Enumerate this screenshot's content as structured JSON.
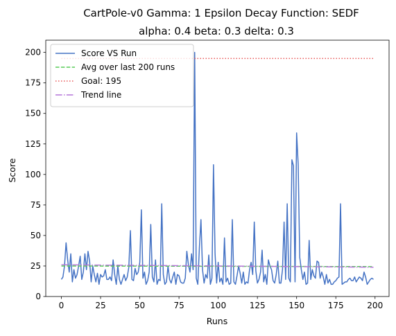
{
  "chart_data": {
    "type": "line",
    "title_line1": "CartPole-v0 Gamma: 1 Epsilon Decay Function: SEDF",
    "title_line2": "alpha: 0.4  beta: 0.3  delta: 0.3",
    "xlabel": "Runs",
    "ylabel": "Score",
    "xlim": [
      -9.95,
      208.95
    ],
    "ylim": [
      0,
      210
    ],
    "xticks": [
      0,
      25,
      50,
      75,
      100,
      125,
      150,
      175,
      200
    ],
    "yticks": [
      0,
      25,
      50,
      75,
      100,
      125,
      150,
      175,
      200
    ],
    "legend_position": "top-left",
    "series": [
      {
        "name": "Score VS Run",
        "style": "solid",
        "color": "#4472c4",
        "x": [
          0,
          1,
          2,
          3,
          4,
          5,
          6,
          7,
          8,
          9,
          10,
          11,
          12,
          13,
          14,
          15,
          16,
          17,
          18,
          19,
          20,
          21,
          22,
          23,
          24,
          25,
          26,
          27,
          28,
          29,
          30,
          31,
          32,
          33,
          34,
          35,
          36,
          37,
          38,
          39,
          40,
          41,
          42,
          43,
          44,
          45,
          46,
          47,
          48,
          49,
          50,
          51,
          52,
          53,
          54,
          55,
          56,
          57,
          58,
          59,
          60,
          61,
          62,
          63,
          64,
          65,
          66,
          67,
          68,
          69,
          70,
          71,
          72,
          73,
          74,
          75,
          76,
          77,
          78,
          79,
          80,
          81,
          82,
          83,
          84,
          85,
          86,
          87,
          88,
          89,
          90,
          91,
          92,
          93,
          94,
          95,
          96,
          97,
          98,
          99,
          100,
          101,
          102,
          103,
          104,
          105,
          106,
          107,
          108,
          109,
          110,
          111,
          112,
          113,
          114,
          115,
          116,
          117,
          118,
          119,
          120,
          121,
          122,
          123,
          124,
          125,
          126,
          127,
          128,
          129,
          130,
          131,
          132,
          133,
          134,
          135,
          136,
          137,
          138,
          139,
          140,
          141,
          142,
          143,
          144,
          145,
          146,
          147,
          148,
          149,
          150,
          151,
          152,
          153,
          154,
          155,
          156,
          157,
          158,
          159,
          160,
          161,
          162,
          163,
          164,
          165,
          166,
          167,
          168,
          169,
          170,
          171,
          172,
          173,
          174,
          175,
          176,
          177,
          178,
          179,
          180,
          181,
          182,
          183,
          184,
          185,
          186,
          187,
          188,
          189,
          190,
          191,
          192,
          193,
          194,
          195,
          196,
          197,
          198,
          199
        ],
        "values": [
          14,
          16,
          25,
          44,
          30,
          20,
          35,
          12,
          22,
          15,
          18,
          25,
          33,
          14,
          20,
          35,
          22,
          37,
          29,
          12,
          25,
          18,
          12,
          19,
          10,
          18,
          16,
          17,
          22,
          14,
          14,
          16,
          13,
          30,
          18,
          10,
          25,
          14,
          10,
          14,
          18,
          13,
          16,
          24,
          54,
          14,
          13,
          23,
          18,
          20,
          28,
          71,
          15,
          20,
          10,
          13,
          20,
          59,
          16,
          12,
          30,
          10,
          14,
          13,
          76,
          18,
          10,
          12,
          25,
          14,
          11,
          16,
          20,
          10,
          18,
          17,
          12,
          11,
          11,
          15,
          37,
          26,
          20,
          35,
          22,
          200,
          15,
          10,
          40,
          63,
          22,
          11,
          18,
          15,
          34,
          10,
          15,
          108,
          35,
          11,
          28,
          12,
          15,
          10,
          48,
          12,
          15,
          10,
          11,
          63,
          12,
          10,
          17,
          25,
          19,
          11,
          20,
          10,
          12,
          11,
          22,
          28,
          18,
          61,
          21,
          11,
          14,
          20,
          38,
          12,
          18,
          10,
          30,
          25,
          22,
          13,
          11,
          18,
          29,
          11,
          11,
          22,
          61,
          14,
          76,
          15,
          12,
          112,
          107,
          12,
          134,
          108,
          32,
          22,
          14,
          20,
          10,
          11,
          46,
          14,
          22,
          17,
          15,
          29,
          28,
          15,
          20,
          16,
          10,
          18,
          11,
          14,
          10,
          10,
          12,
          13,
          15,
          16,
          76,
          10,
          11,
          12,
          12,
          14,
          15,
          13,
          13,
          16,
          12,
          14,
          16,
          15,
          13,
          20,
          16,
          10,
          12,
          14,
          15,
          14
        ]
      },
      {
        "name": "Avg over last 200 runs",
        "style": "dashed",
        "color": "#55cc55",
        "x": [
          0,
          199
        ],
        "values": [
          25,
          24.5
        ]
      },
      {
        "name": "Goal: 195",
        "style": "dotted",
        "color": "#e85555",
        "x": [
          0,
          199
        ],
        "values": [
          195,
          195
        ]
      },
      {
        "name": "Trend line",
        "style": "dashdot",
        "color": "#b474d8",
        "x": [
          0,
          199
        ],
        "values": [
          26,
          24
        ]
      }
    ]
  }
}
